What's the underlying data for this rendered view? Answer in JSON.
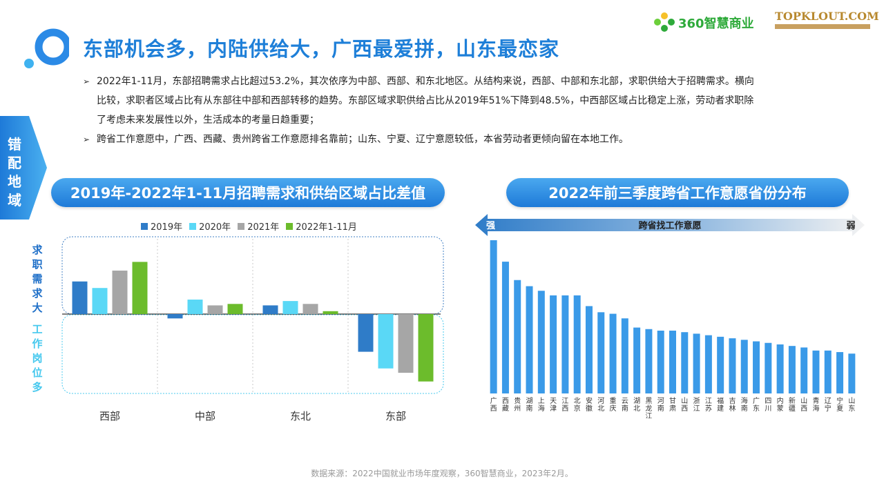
{
  "page": {
    "title": "东部机会多，内陆供给大，广西最爱拼，山东最恋家",
    "brand1": "360智慧商业",
    "brand2": "TOPKLOUT.COM",
    "side_tab": [
      "错",
      "配",
      "地",
      "域"
    ],
    "bullets": [
      "2022年1-11月，东部招聘需求占比超过53.2%，其次依序为中部、西部、和东北地区。从结构来说，西部、中部和东北部，求职供给大于招聘需求。横向比较，求职者区域占比有从东部往中部和西部转移的趋势。东部区域求职供给占比从2019年51%下降到48.5%，中西部区域占比稳定上涨，劳动者求职除了考虑未来发展性以外，生活成本的考量日趋重要；",
      "跨省工作意愿中，广西、西藏、贵州跨省工作意愿排名靠前；山东、宁夏、辽宁意愿较低，本省劳动者更倾向留在本地工作。"
    ],
    "source": "数据来源：2022中国就业市场年度观察，360智慧商业，2023年2月。"
  },
  "colors": {
    "accent": "#1e7fd8",
    "s2019": "#2f7cc8",
    "s2020": "#5ad8f6",
    "s2021": "#a6a6a6",
    "s2022": "#6cbc2c",
    "bar_right": "#3a9ae8"
  },
  "chart_data": [
    {
      "type": "bar",
      "title": "2019年-2022年1-11月招聘需求和供给区域占比差值",
      "categories": [
        "西部",
        "中部",
        "东北",
        "东部"
      ],
      "series": [
        {
          "name": "2019年",
          "values": [
            4.5,
            -0.6,
            1.2,
            -5.2
          ]
        },
        {
          "name": "2020年",
          "values": [
            3.6,
            2.0,
            1.8,
            -7.5
          ]
        },
        {
          "name": "2021年",
          "values": [
            6.0,
            1.2,
            1.4,
            -8.1
          ]
        },
        {
          "name": "2022年1-11月",
          "values": [
            7.2,
            1.4,
            0.4,
            -9.3
          ]
        }
      ],
      "upper_label": [
        "求",
        "职",
        "需",
        "求",
        "大"
      ],
      "lower_label": [
        "工",
        "作",
        "岗",
        "位",
        "多"
      ],
      "ylim": [
        -11,
        11
      ],
      "legend": "top"
    },
    {
      "type": "bar",
      "title": "2022年前三季度跨省工作意愿省份分布",
      "arrow_label": "跨省找工作意愿",
      "arrow_left": "强",
      "arrow_right": "弱",
      "categories": [
        "广西",
        "西藏",
        "贵州",
        "湖南",
        "上海",
        "天津",
        "江西",
        "北京",
        "安徽",
        "河北",
        "重庆",
        "云南",
        "湖北",
        "黑龙江",
        "河南",
        "甘肃",
        "山西",
        "浙江",
        "江苏",
        "福建",
        "吉林",
        "海南",
        "广东",
        "四川",
        "内蒙",
        "新疆",
        "山西",
        "青海",
        "辽宁",
        "宁夏",
        "山东"
      ],
      "values": [
        100,
        86,
        74,
        70,
        67,
        64,
        64,
        64,
        57,
        53,
        52,
        49,
        43,
        42,
        41,
        41,
        40,
        39,
        38,
        37,
        36,
        35,
        34,
        33,
        32,
        31,
        30,
        28,
        28,
        27,
        26
      ],
      "ylim": [
        0,
        100
      ]
    }
  ]
}
